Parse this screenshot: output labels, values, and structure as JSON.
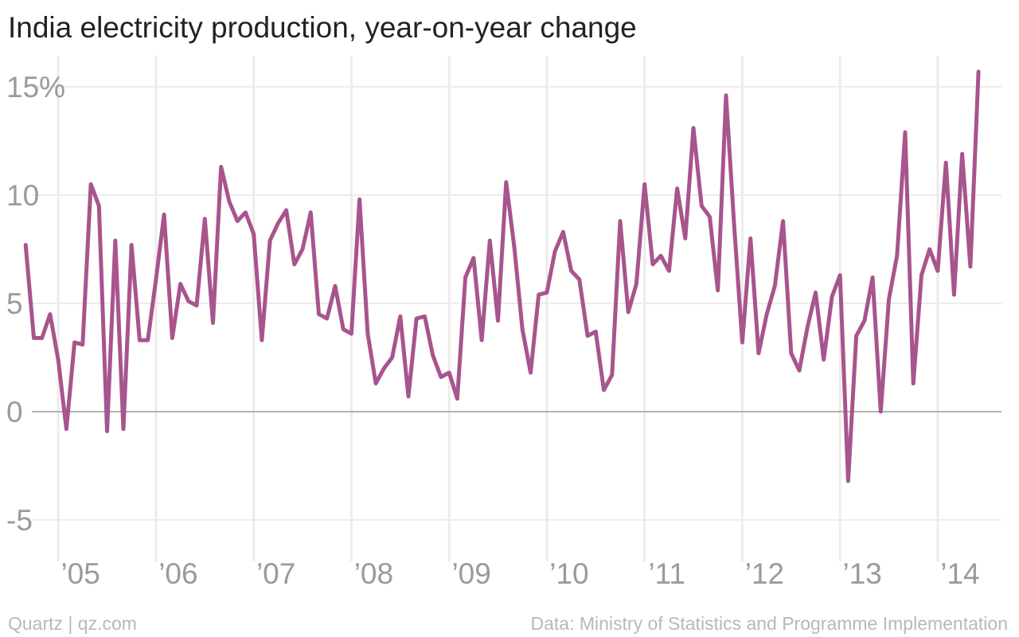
{
  "title": "India electricity production, year-on-year change",
  "credit": "Quartz | qz.com",
  "source": "Data: Ministry of Statistics and Programme Implementation",
  "chart_data": {
    "type": "line",
    "title": "India electricity production, year-on-year change",
    "xlabel": "",
    "ylabel": "",
    "y_unit": "%",
    "ylim": [
      -7.5,
      16
    ],
    "xlim": [
      "2004-08",
      "2014-10"
    ],
    "grid": true,
    "legend": "none",
    "line_color": "#A8548D",
    "yticks": [
      {
        "value": 15,
        "label": "15%"
      },
      {
        "value": 10,
        "label": "10"
      },
      {
        "value": 5,
        "label": "5"
      },
      {
        "value": 0,
        "label": "0"
      },
      {
        "value": -5,
        "label": "-5"
      }
    ],
    "xticks": [
      {
        "date": "2005-01",
        "label": "’05"
      },
      {
        "date": "2006-01",
        "label": "’06"
      },
      {
        "date": "2007-01",
        "label": "’07"
      },
      {
        "date": "2008-01",
        "label": "’08"
      },
      {
        "date": "2009-01",
        "label": "’09"
      },
      {
        "date": "2010-01",
        "label": "’10"
      },
      {
        "date": "2011-01",
        "label": "’11"
      },
      {
        "date": "2012-01",
        "label": "’12"
      },
      {
        "date": "2013-01",
        "label": "’13"
      },
      {
        "date": "2014-01",
        "label": "’14"
      }
    ],
    "series": [
      {
        "x": [
          "2004-09",
          "2004-10",
          "2004-11",
          "2004-12",
          "2005-01",
          "2005-02",
          "2005-03",
          "2005-04",
          "2005-05",
          "2005-06",
          "2005-07",
          "2005-08",
          "2005-09",
          "2005-10",
          "2005-11",
          "2005-12",
          "2006-01",
          "2006-02",
          "2006-03",
          "2006-04",
          "2006-05",
          "2006-06",
          "2006-07",
          "2006-08",
          "2006-09",
          "2006-10",
          "2006-11",
          "2006-12",
          "2007-01",
          "2007-02",
          "2007-03",
          "2007-04",
          "2007-05",
          "2007-06",
          "2007-07",
          "2007-08",
          "2007-09",
          "2007-10",
          "2007-11",
          "2007-12",
          "2008-01",
          "2008-02",
          "2008-03",
          "2008-04",
          "2008-05",
          "2008-06",
          "2008-07",
          "2008-08",
          "2008-09",
          "2008-10",
          "2008-11",
          "2008-12",
          "2009-01",
          "2009-02",
          "2009-03",
          "2009-04",
          "2009-05",
          "2009-06",
          "2009-07",
          "2009-08",
          "2009-09",
          "2009-10",
          "2009-11",
          "2009-12",
          "2010-01",
          "2010-02",
          "2010-03",
          "2010-04",
          "2010-05",
          "2010-06",
          "2010-07",
          "2010-08",
          "2010-09",
          "2010-10",
          "2010-11",
          "2010-12",
          "2011-01",
          "2011-02",
          "2011-03",
          "2011-04",
          "2011-05",
          "2011-06",
          "2011-07",
          "2011-08",
          "2011-09",
          "2011-10",
          "2011-11",
          "2011-12",
          "2012-01",
          "2012-02",
          "2012-03",
          "2012-04",
          "2012-05",
          "2012-06",
          "2012-07",
          "2012-08",
          "2012-09",
          "2012-10",
          "2012-11",
          "2012-12",
          "2013-01",
          "2013-02",
          "2013-03",
          "2013-04",
          "2013-05",
          "2013-06",
          "2013-07",
          "2013-08",
          "2013-09",
          "2013-10",
          "2013-11",
          "2013-12",
          "2014-01",
          "2014-02",
          "2014-03",
          "2014-04",
          "2014-05",
          "2014-06"
        ],
        "y": [
          7.7,
          3.4,
          3.4,
          4.5,
          2.4,
          -0.8,
          3.2,
          3.1,
          10.5,
          9.5,
          -0.9,
          7.9,
          -0.8,
          7.7,
          3.3,
          3.3,
          6.1,
          9.1,
          3.4,
          5.9,
          5.1,
          4.9,
          8.9,
          4.1,
          11.3,
          9.7,
          8.8,
          9.2,
          8.2,
          3.3,
          7.9,
          8.7,
          9.3,
          6.8,
          7.5,
          9.2,
          4.5,
          4.3,
          5.8,
          3.8,
          3.6,
          9.8,
          3.6,
          1.3,
          2.0,
          2.5,
          4.4,
          0.7,
          4.3,
          4.4,
          2.6,
          1.6,
          1.8,
          0.6,
          6.2,
          7.1,
          3.3,
          7.9,
          4.2,
          10.6,
          7.6,
          3.8,
          1.8,
          5.4,
          5.5,
          7.4,
          8.3,
          6.5,
          6.1,
          3.5,
          3.7,
          1.0,
          1.7,
          8.8,
          4.6,
          5.9,
          10.5,
          6.8,
          7.2,
          6.5,
          10.3,
          8.0,
          13.1,
          9.5,
          9.0,
          5.6,
          14.6,
          8.6,
          3.2,
          8.0,
          2.7,
          4.5,
          5.8,
          8.8,
          2.7,
          1.9,
          3.9,
          5.5,
          2.4,
          5.3,
          6.3,
          -3.2,
          3.5,
          4.2,
          6.2,
          0.0,
          5.2,
          7.2,
          12.9,
          1.3,
          6.3,
          7.5,
          6.5,
          11.5,
          5.4,
          11.9,
          6.7,
          15.7
        ]
      }
    ]
  }
}
